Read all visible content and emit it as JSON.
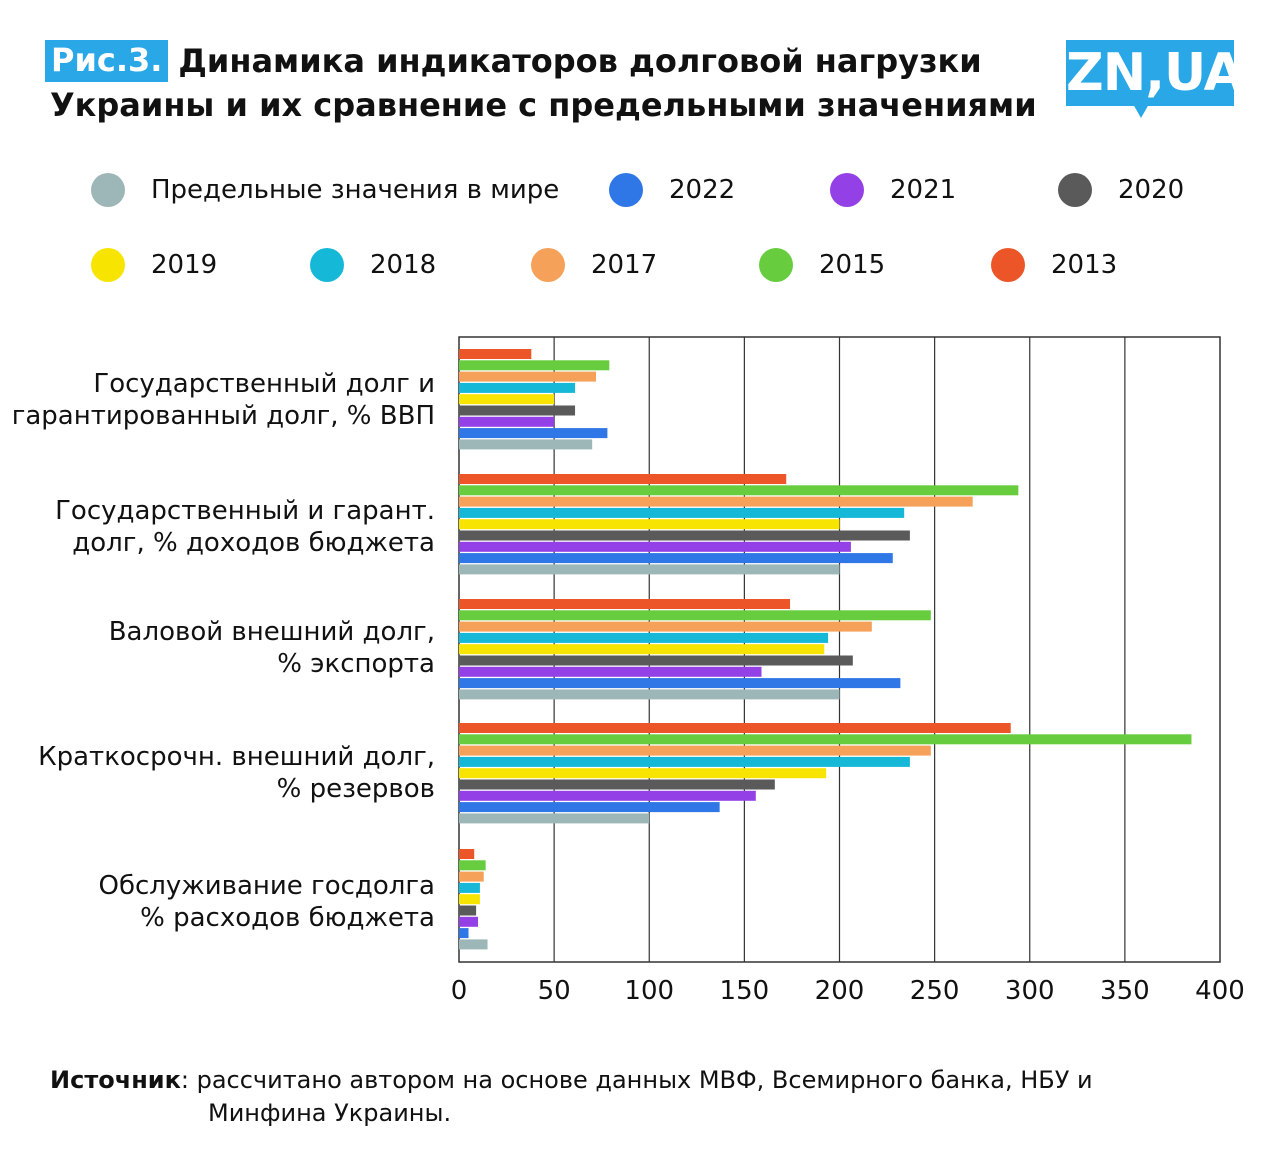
{
  "header": {
    "badge": "Рис.3.",
    "title_line1": "Динамика индикаторов долговой нагрузки",
    "title_line2": "Украины и их сравнение с предельными значениями",
    "logo_text": "ZN,UA"
  },
  "colors": {
    "limit": "#9db7b8",
    "y2022": "#2f76e6",
    "y2021": "#9340e6",
    "y2020": "#5a5a5a",
    "y2019": "#f7e400",
    "y2018": "#16b8d8",
    "y2017": "#f6a15a",
    "y2015": "#67cc3e",
    "y2013": "#ec5528",
    "grid": "#333333"
  },
  "chart_data": {
    "type": "bar",
    "orientation": "horizontal",
    "xlim": [
      0,
      400
    ],
    "xticks": [
      "0",
      "50",
      "100",
      "150",
      "200",
      "250",
      "300",
      "350",
      "400"
    ],
    "grid": true,
    "legend_position": "top",
    "categories": [
      "Государственный долг и гарантированный долг, % ВВП",
      "Государственный и гарант. долг, % доходов бюджета",
      "Валовой внешний долг, % экспорта",
      "Краткосрочн. внешний долг, % резервов",
      "Обслуживание госдолга % расходов бюджета"
    ],
    "category_lines": [
      [
        "Государственный долг и",
        "гарантированный долг, % ВВП"
      ],
      [
        "Государственный и гарант.",
        "долг, % доходов бюджета"
      ],
      [
        "Валовой внешний долг,",
        "% экспорта"
      ],
      [
        "Краткосрочн. внешний долг,",
        "% резервов"
      ],
      [
        "Обслуживание госдолга",
        "% расходов бюджета"
      ]
    ],
    "series": [
      {
        "name": "2013",
        "color": "#ec5528",
        "values": [
          38,
          172,
          174,
          290,
          8
        ]
      },
      {
        "name": "2015",
        "color": "#67cc3e",
        "values": [
          79,
          294,
          248,
          385,
          14
        ]
      },
      {
        "name": "2017",
        "color": "#f6a15a",
        "values": [
          72,
          270,
          217,
          248,
          13
        ]
      },
      {
        "name": "2018",
        "color": "#16b8d8",
        "values": [
          61,
          234,
          194,
          237,
          11
        ]
      },
      {
        "name": "2019",
        "color": "#f7e400",
        "values": [
          50,
          200,
          192,
          193,
          11
        ]
      },
      {
        "name": "2020",
        "color": "#5a5a5a",
        "values": [
          61,
          237,
          207,
          166,
          9
        ]
      },
      {
        "name": "2021",
        "color": "#9340e6",
        "values": [
          50,
          206,
          159,
          156,
          10
        ]
      },
      {
        "name": "2022",
        "color": "#2f76e6",
        "values": [
          78,
          228,
          232,
          137,
          5
        ]
      },
      {
        "name": "Предельные значения в мире",
        "color": "#9db7b8",
        "values": [
          70,
          200,
          200,
          100,
          15
        ]
      }
    ]
  },
  "legend": {
    "row1": [
      {
        "label": "Предельные значения в мире",
        "color": "#9db7b8"
      },
      {
        "label": "2022",
        "color": "#2f76e6"
      },
      {
        "label": "2021",
        "color": "#9340e6"
      },
      {
        "label": "2020",
        "color": "#5a5a5a"
      }
    ],
    "row2": [
      {
        "label": "2019",
        "color": "#f7e400"
      },
      {
        "label": "2018",
        "color": "#16b8d8"
      },
      {
        "label": "2017",
        "color": "#f6a15a"
      },
      {
        "label": "2015",
        "color": "#67cc3e"
      },
      {
        "label": "2013",
        "color": "#ec5528"
      }
    ]
  },
  "footer": {
    "source_label": "Источник",
    "source_text_line1": ": рассчитано автором на основе данных МВФ, Всемирного банка, НБУ и",
    "source_text_line2": "Минфина Украины."
  }
}
